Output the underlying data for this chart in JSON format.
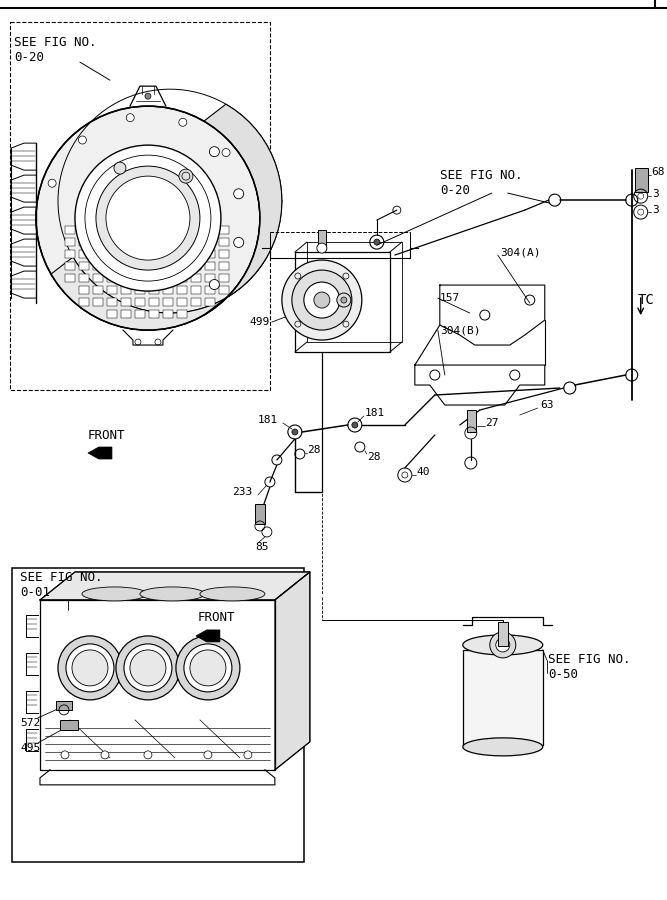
{
  "bg_color": "#ffffff",
  "line_color": "#000000",
  "labels": {
    "see_fig_020_tl": "SEE FIG NO.\n0-20",
    "see_fig_020_mid": "SEE FIG NO.\n0-20",
    "see_fig_001": "SEE FIG NO.\n0-01",
    "see_fig_050": "SEE FIG NO.\n0-50",
    "front_top": "FRONT",
    "front_bot": "FRONT",
    "tc": "TC",
    "p499": "499",
    "p181a": "181",
    "p181b": "181",
    "p233": "233",
    "p28a": "28",
    "p28b": "28",
    "p85": "85",
    "p40": "40",
    "p63": "63",
    "p27": "27",
    "p304a": "304(A)",
    "p304b": "304(B)",
    "p157": "157",
    "p68": "68",
    "p3a": "3",
    "p3b": "3",
    "p572": "572",
    "p495": "495"
  }
}
